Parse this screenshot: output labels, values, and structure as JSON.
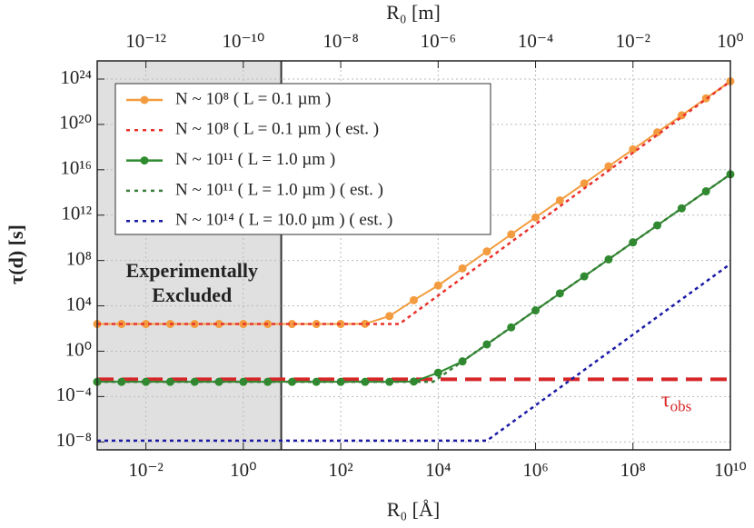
{
  "chart_data": {
    "type": "line",
    "xlabel": "R₀  [Å]",
    "x2label": "R₀  [m]",
    "ylabel": "τ(d)  [s]",
    "xscale": "log",
    "yscale": "log",
    "grid": true,
    "xlim": [
      0.001,
      10000000000.0
    ],
    "xticks": [
      {
        "value": 0.01,
        "label": "10⁻²"
      },
      {
        "value": 1,
        "label": "10⁰"
      },
      {
        "value": 100,
        "label": "10²"
      },
      {
        "value": 10000.0,
        "label": "10⁴"
      },
      {
        "value": 1000000.0,
        "label": "10⁶"
      },
      {
        "value": 100000000.0,
        "label": "10⁸"
      },
      {
        "value": 10000000000.0,
        "label": "10¹⁰"
      }
    ],
    "x2lim": [
      1e-13,
      1
    ],
    "x2ticks": [
      {
        "value": 1e-12,
        "label": "10⁻¹²"
      },
      {
        "value": 1e-10,
        "label": "10⁻¹⁰"
      },
      {
        "value": 1e-08,
        "label": "10⁻⁸"
      },
      {
        "value": 1e-06,
        "label": "10⁻⁶"
      },
      {
        "value": 0.0001,
        "label": "10⁻⁴"
      },
      {
        "value": 0.01,
        "label": "10⁻²"
      },
      {
        "value": 1,
        "label": "10⁰"
      }
    ],
    "ylim": [
      2e-09,
      4e+25
    ],
    "yticks": [
      {
        "value": 1e-08,
        "label": "10⁻⁸"
      },
      {
        "value": 0.0001,
        "label": "10⁻⁴"
      },
      {
        "value": 1,
        "label": "10⁰"
      },
      {
        "value": 10000.0,
        "label": "10⁴"
      },
      {
        "value": 100000000.0,
        "label": "10⁸"
      },
      {
        "value": 1000000000000.0,
        "label": "10¹²"
      },
      {
        "value": 1e+16,
        "label": "10¹⁶"
      },
      {
        "value": 1e+20,
        "label": "10²⁰"
      },
      {
        "value": 1e+24,
        "label": "10²⁴"
      }
    ],
    "legend": "upper left",
    "excluded_region": {
      "xmax": 6,
      "color": "#e0e0e0",
      "label": [
        "Experimentally",
        "Excluded"
      ]
    },
    "hline": {
      "value": 0.0033,
      "color": "#d62728",
      "label": "τ",
      "label_sub": "obs"
    },
    "series": [
      {
        "name": "N ~ 10⁸    ( L =   0.1 µm )",
        "color": "#f39c3f",
        "style": "markers",
        "x": [
          0.001,
          0.00316,
          0.01,
          0.0316,
          0.1,
          0.316,
          1,
          3.16,
          10,
          31.6,
          100,
          316,
          1000,
          3162,
          10000,
          31623,
          100000.0,
          316000.0,
          1000000.0,
          3160000.0,
          10000000.0,
          31600000.0,
          100000000.0,
          316000000.0,
          1000000000.0,
          3160000000.0,
          10000000000.0
        ],
        "values": [
          250,
          250,
          250,
          250,
          250,
          250,
          250,
          250,
          250,
          250,
          250,
          260,
          1260,
          31600,
          630000.0,
          20000000.0,
          630000000.0,
          20000000000.0,
          630000000000.0,
          20000000000000.0,
          630000000000000.0,
          2e+16,
          6.3e+17,
          2e+19,
          6.3e+20,
          2e+22,
          6.3e+23
        ]
      },
      {
        "name": "N ~ 10⁸    ( L =   0.1 µm )  ( est. )",
        "color": "#e8322c",
        "style": "dashed",
        "x": [
          0.001,
          1600,
          10000000000.0
        ],
        "values": [
          250,
          250,
          6.3e+23
        ]
      },
      {
        "name": "N ~ 10¹¹   ( L =   1.0 µm )",
        "color": "#2e8b2e",
        "style": "markers",
        "x": [
          0.001,
          0.00316,
          0.01,
          0.0316,
          0.1,
          0.316,
          1,
          3.16,
          10,
          31.6,
          100,
          316,
          1000,
          3162,
          10000,
          31623,
          100000.0,
          316000.0,
          1000000.0,
          3160000.0,
          10000000.0,
          31600000.0,
          100000000.0,
          316000000.0,
          1000000000.0,
          3160000000.0,
          10000000000.0
        ],
        "values": [
          0.002,
          0.002,
          0.002,
          0.002,
          0.002,
          0.002,
          0.002,
          0.002,
          0.002,
          0.002,
          0.002,
          0.002,
          0.002,
          0.0021,
          0.0126,
          0.126,
          4,
          126,
          4000,
          126000.0,
          4000000.0,
          126000000.0,
          4000000000.0,
          126000000000.0,
          4000000000000.0,
          126000000000000.0,
          4000000000000000.0
        ]
      },
      {
        "name": "N ~ 10¹¹   ( L =   1.0 µm )  ( est. )",
        "color": "#3a7d3a",
        "style": "dashed",
        "x": [
          0.001,
          7900,
          10000000000.0
        ],
        "values": [
          0.002,
          0.002,
          4000000000000000.0
        ]
      },
      {
        "name": "N ~ 10¹⁴   ( L = 10.0 µm )  ( est. )",
        "color": "#1a1aa6",
        "style": "dashed",
        "x": [
          0.001,
          100000.0,
          10000000000.0
        ],
        "values": [
          1.3e-08,
          1.3e-08,
          50000000.0
        ]
      }
    ]
  }
}
